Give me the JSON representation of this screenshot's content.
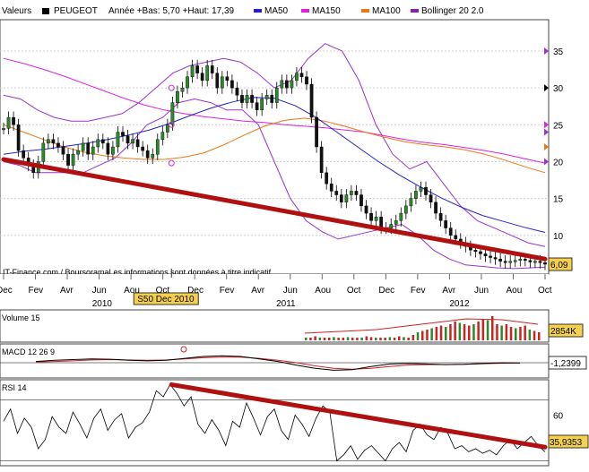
{
  "header": {
    "prefix": "Valeurs",
    "symbol": "PEUGEOT",
    "range_text": "Année +Bas: 5,70 +Haut: 17,39",
    "indicators": [
      {
        "name": "MA50",
        "color": "#2222cc"
      },
      {
        "name": "MA150",
        "color": "#dd22dd"
      },
      {
        "name": "MA100",
        "color": "#ee7711"
      },
      {
        "name": "Bollinger 20 2.0",
        "color": "#8822aa"
      }
    ]
  },
  "watermark": "IT-Finance.com / BoursoramaLes informations sont données à titre indicatif",
  "cursor_label": "S50 Dec 2010",
  "chart_data": [
    {
      "type": "line",
      "panel": "price",
      "ylim": [
        5,
        39
      ],
      "yticks": [
        10,
        15,
        20,
        25,
        30,
        35
      ],
      "last_value": "6,09",
      "x_month_labels": [
        "Dec",
        "Fev",
        "Avr",
        "Jun",
        "Aou",
        "Oct",
        "Dec",
        "Fev",
        "Avr",
        "Jun",
        "Aou",
        "Oct",
        "Dec",
        "Fev",
        "Avr",
        "Jun",
        "Aou",
        "Oct"
      ],
      "x_year_labels": [
        "2010",
        "2011",
        "2012"
      ],
      "candle_closes": [
        24.5,
        26,
        25,
        21.5,
        20.5,
        19.5,
        18.5,
        20,
        22.5,
        23,
        22.5,
        22,
        21,
        19.5,
        21,
        21.5,
        22.5,
        21,
        22,
        23,
        22.5,
        21,
        22,
        24,
        23.5,
        22.5,
        23,
        22,
        21.5,
        20.5,
        21,
        23,
        24,
        25,
        28,
        29.5,
        30,
        31.5,
        33,
        32,
        31,
        33,
        32,
        30,
        31.5,
        31,
        30,
        29,
        28,
        29,
        28,
        27,
        28.5,
        29,
        28,
        30,
        31,
        30,
        31,
        32,
        31.5,
        30.5,
        26,
        22,
        18.5,
        17,
        16,
        15.5,
        14.5,
        15.5,
        16,
        15.5,
        14,
        13,
        12,
        12.5,
        11,
        11,
        11.5,
        12,
        13,
        14,
        15,
        16,
        16.5,
        15.5,
        14.5,
        13,
        12,
        11,
        10,
        9.5,
        9,
        8.5,
        8,
        7.8,
        7.5,
        7.2,
        7,
        6.8,
        6.5,
        6.3,
        6.5,
        6.6,
        6.8,
        6.6,
        6.4,
        6.5,
        6.3,
        6.09
      ],
      "ma50": [
        21,
        21.4,
        21.7,
        22.1,
        22.5,
        23,
        23.6,
        24.3,
        25.2,
        26.3,
        27.3,
        28.1,
        28.7,
        28.6,
        27.6,
        26,
        24,
        22,
        20,
        18.2,
        16.6,
        15.1,
        13.8,
        12.7,
        11.9,
        11.1,
        10.4
      ],
      "ma100": [
        25,
        24,
        23,
        22,
        21.3,
        20.8,
        20.5,
        20.3,
        20.3,
        20.6,
        21.2,
        22.3,
        23.6,
        24.8,
        25.6,
        25.9,
        25.5,
        24.8,
        24,
        23.3,
        22.7,
        22.3,
        22,
        21.6,
        21,
        20.2,
        19.3,
        18.5
      ],
      "ma150": [
        34,
        33.3,
        32.5,
        31.6,
        30.6,
        29.6,
        28.6,
        27.7,
        27,
        26.5,
        26.1,
        25.8,
        25.5,
        25.3,
        25,
        24.8,
        24.6,
        24.3,
        24,
        23.5,
        23,
        22.6,
        22.3,
        21.9,
        21.5,
        21,
        20.4,
        19.8
      ],
      "bollinger_upper": [
        29,
        28.5,
        27,
        26,
        25.5,
        25.5,
        26,
        26.5,
        28,
        30,
        32,
        33,
        33.5,
        34,
        33.5,
        32,
        30,
        31,
        34,
        36,
        35,
        31,
        25,
        21,
        19,
        20,
        17,
        14,
        12,
        11,
        10,
        9,
        8.5
      ],
      "bollinger_lower": [
        20,
        19.5,
        18.5,
        18.5,
        18.5,
        18.5,
        19.5,
        20.5,
        22.5,
        25,
        26,
        28,
        28.5,
        28,
        27,
        27,
        25,
        20,
        15,
        12,
        10.5,
        9.5,
        10,
        10.5,
        11,
        11.5,
        10,
        8,
        6.8,
        6,
        5.8,
        5.6,
        5.5,
        5.6,
        5.7
      ],
      "trendline": [
        [
          0,
          20.3
        ],
        [
          1,
          6.8
        ]
      ],
      "markers": [
        {
          "t": 0.31,
          "v": 30
        },
        {
          "t": 0.31,
          "v": 25
        },
        {
          "t": 0.31,
          "v": 19.8
        }
      ]
    },
    {
      "type": "bar",
      "panel": "volume",
      "name": "Volume 15",
      "last_value": "2854K",
      "values": [
        0.1,
        0.1,
        0.15,
        0.1,
        0.1,
        0.1,
        0.12,
        0.1,
        0.1,
        0.12,
        0.1,
        0.1,
        0.1,
        0.15,
        0.12,
        0.1,
        0.1,
        0.1,
        0.12,
        0.1,
        0.15,
        0.12,
        0.1,
        0.2,
        0.3,
        0.35,
        0.4,
        0.45,
        0.5,
        0.55,
        0.5,
        0.6,
        0.7,
        0.65,
        0.6,
        0.55,
        0.6,
        0.7,
        0.8,
        0.75,
        0.9,
        0.6,
        0.55,
        0.6,
        0.5,
        0.45,
        0.5,
        0.55,
        0.4,
        0.35,
        0.3
      ]
    },
    {
      "type": "line",
      "panel": "macd",
      "name": "MACD 12 26 9",
      "last_value": "-1,2399",
      "macd": [
        0.1,
        0.2,
        0.25,
        0.3,
        0.28,
        0.2,
        0.15,
        0.2,
        0.35,
        0.5,
        0.55,
        0.5,
        0.3,
        0.1,
        -0.2,
        -0.45,
        -0.6,
        -0.55,
        -0.3,
        -0.1,
        -0.05,
        -0.1,
        -0.15,
        -0.12,
        -0.05,
        0,
        -0.02
      ],
      "signal": [
        0.05,
        0.1,
        0.15,
        0.22,
        0.25,
        0.22,
        0.2,
        0.22,
        0.3,
        0.4,
        0.45,
        0.45,
        0.35,
        0.2,
        0,
        -0.25,
        -0.45,
        -0.52,
        -0.45,
        -0.3,
        -0.18,
        -0.15,
        -0.14,
        -0.13,
        -0.08,
        -0.04,
        -0.02
      ]
    },
    {
      "type": "line",
      "panel": "rsi",
      "name": "RSI 14",
      "ylim": [
        28,
        82
      ],
      "yticks": [
        60
      ],
      "guides": [
        30,
        70
      ],
      "last_value": "35,9353",
      "values": [
        56,
        64,
        48,
        58,
        52,
        38,
        44,
        59,
        52,
        48,
        62,
        54,
        45,
        58,
        64,
        50,
        57,
        61,
        45,
        52,
        55,
        62,
        76,
        72,
        80,
        74,
        66,
        72,
        54,
        48,
        57,
        50,
        40,
        56,
        52,
        68,
        58,
        47,
        59,
        64,
        50,
        44,
        60,
        54,
        46,
        58,
        66,
        62,
        30,
        34,
        40,
        31,
        37,
        40,
        35,
        30,
        38,
        42,
        36,
        50,
        54,
        47,
        44,
        52,
        48,
        38,
        40,
        36,
        38,
        35,
        37,
        34,
        40,
        44,
        38,
        42,
        46,
        40,
        36
      ],
      "trendline": [
        [
          0.31,
          80
        ],
        [
          1,
          39
        ]
      ]
    }
  ]
}
